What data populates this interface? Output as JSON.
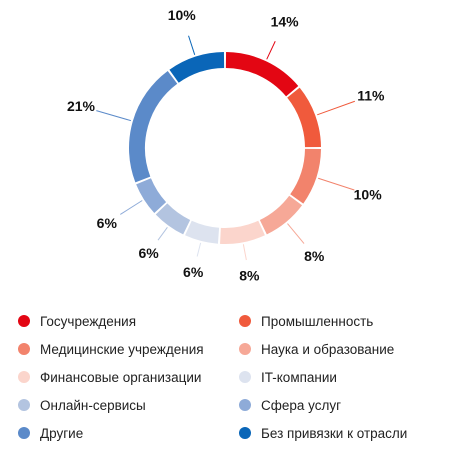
{
  "chart_data": {
    "type": "pie",
    "variant": "donut",
    "title": "",
    "legend_position": "bottom",
    "categories": [
      "Госучреждения",
      "Промышленность",
      "Медицинские учреждения",
      "Наука и образование",
      "Финансовые организации",
      "IT-компании",
      "Онлайн-сервисы",
      "Сфера услуг",
      "Другие",
      "Без привязки к отрасли"
    ],
    "values": [
      14,
      11,
      10,
      8,
      8,
      6,
      6,
      6,
      21,
      10
    ],
    "value_labels": [
      "14%",
      "11%",
      "10%",
      "8%",
      "8%",
      "6%",
      "6%",
      "6%",
      "21%",
      "10%"
    ],
    "colors": [
      "#e30613",
      "#f05a3c",
      "#f2836c",
      "#f6a897",
      "#fbd5cc",
      "#dde3ef",
      "#b3c4e0",
      "#8eabd8",
      "#5b8ac9",
      "#0a66b8"
    ]
  }
}
